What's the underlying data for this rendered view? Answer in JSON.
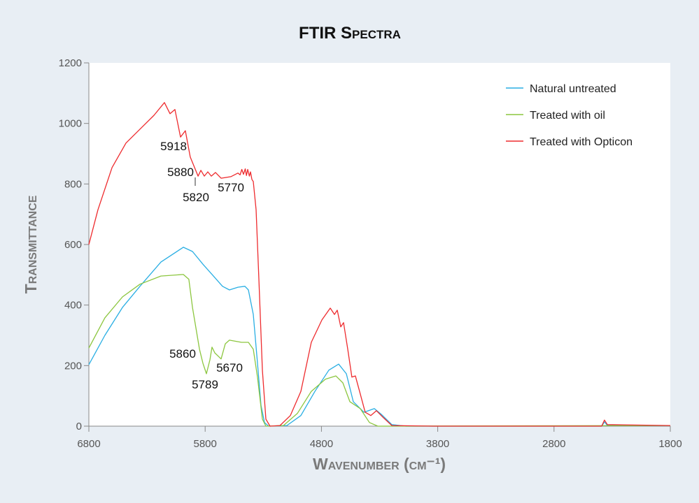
{
  "chart_data": {
    "type": "line",
    "title": "FTIR Spectra",
    "xlabel": "Wavenumber (cm⁻¹)",
    "ylabel": "Transmittance",
    "xlim": [
      6800,
      1800
    ],
    "ylim": [
      0,
      1200
    ],
    "x_reversed": true,
    "xticks": [
      6800,
      5800,
      4800,
      3800,
      2800,
      1800
    ],
    "yticks": [
      0,
      200,
      400,
      600,
      800,
      1000,
      1200
    ],
    "grid": false,
    "legend_position": "top-right",
    "series": [
      {
        "name": "Natural untreated",
        "color": "#29aee3",
        "points": [
          [
            6800,
            203
          ],
          [
            6662,
            300
          ],
          [
            6511,
            392
          ],
          [
            6361,
            462
          ],
          [
            6180,
            542
          ],
          [
            5988,
            591
          ],
          [
            5909,
            577
          ],
          [
            5819,
            535
          ],
          [
            5729,
            496
          ],
          [
            5651,
            462
          ],
          [
            5591,
            450
          ],
          [
            5518,
            459
          ],
          [
            5458,
            462
          ],
          [
            5428,
            450
          ],
          [
            5386,
            369
          ],
          [
            5350,
            208
          ],
          [
            5320,
            69
          ],
          [
            5290,
            12
          ],
          [
            5254,
            0
          ],
          [
            5097,
            2
          ],
          [
            4977,
            35
          ],
          [
            4856,
            115
          ],
          [
            4736,
            185
          ],
          [
            4652,
            205
          ],
          [
            4586,
            173
          ],
          [
            4526,
            81
          ],
          [
            4435,
            46
          ],
          [
            4345,
            58
          ],
          [
            4285,
            39
          ],
          [
            4195,
            5
          ],
          [
            4074,
            0
          ],
          [
            2390,
            0
          ],
          [
            2366,
            14
          ],
          [
            2341,
            2
          ],
          [
            1800,
            2
          ]
        ]
      },
      {
        "name": "Treated with oil",
        "color": "#8cc63f",
        "points": [
          [
            6800,
            258
          ],
          [
            6662,
            358
          ],
          [
            6511,
            427
          ],
          [
            6361,
            469
          ],
          [
            6180,
            496
          ],
          [
            5988,
            501
          ],
          [
            5940,
            485
          ],
          [
            5909,
            392
          ],
          [
            5879,
            323
          ],
          [
            5849,
            254
          ],
          [
            5819,
            208
          ],
          [
            5789,
            173
          ],
          [
            5759,
            219
          ],
          [
            5741,
            261
          ],
          [
            5717,
            242
          ],
          [
            5663,
            222
          ],
          [
            5627,
            272
          ],
          [
            5591,
            284
          ],
          [
            5488,
            277
          ],
          [
            5428,
            277
          ],
          [
            5386,
            254
          ],
          [
            5350,
            162
          ],
          [
            5308,
            23
          ],
          [
            5278,
            0
          ],
          [
            5127,
            2
          ],
          [
            5007,
            42
          ],
          [
            4887,
            115
          ],
          [
            4766,
            155
          ],
          [
            4676,
            166
          ],
          [
            4616,
            143
          ],
          [
            4556,
            81
          ],
          [
            4466,
            58
          ],
          [
            4387,
            12
          ],
          [
            4315,
            0
          ],
          [
            1800,
            2
          ]
        ]
      },
      {
        "name": "Treated with Opticon",
        "color": "#ee2b2e",
        "points": [
          [
            6800,
            600
          ],
          [
            6722,
            715
          ],
          [
            6601,
            854
          ],
          [
            6481,
            935
          ],
          [
            6361,
            981
          ],
          [
            6240,
            1027
          ],
          [
            6150,
            1069
          ],
          [
            6102,
            1032
          ],
          [
            6060,
            1046
          ],
          [
            6012,
            955
          ],
          [
            5970,
            976
          ],
          [
            5928,
            889
          ],
          [
            5891,
            854
          ],
          [
            5861,
            826
          ],
          [
            5837,
            845
          ],
          [
            5807,
            826
          ],
          [
            5777,
            840
          ],
          [
            5747,
            826
          ],
          [
            5711,
            838
          ],
          [
            5663,
            819
          ],
          [
            5579,
            824
          ],
          [
            5518,
            836
          ],
          [
            5500,
            830
          ],
          [
            5485,
            848
          ],
          [
            5470,
            832
          ],
          [
            5455,
            850
          ],
          [
            5445,
            828
          ],
          [
            5434,
            848
          ],
          [
            5420,
            826
          ],
          [
            5410,
            840
          ],
          [
            5398,
            815
          ],
          [
            5386,
            808
          ],
          [
            5362,
            715
          ],
          [
            5338,
            485
          ],
          [
            5308,
            185
          ],
          [
            5278,
            23
          ],
          [
            5242,
            0
          ],
          [
            5157,
            2
          ],
          [
            5067,
            35
          ],
          [
            4977,
            115
          ],
          [
            4887,
            277
          ],
          [
            4796,
            351
          ],
          [
            4724,
            390
          ],
          [
            4688,
            369
          ],
          [
            4664,
            383
          ],
          [
            4634,
            328
          ],
          [
            4610,
            342
          ],
          [
            4574,
            254
          ],
          [
            4538,
            162
          ],
          [
            4508,
            166
          ],
          [
            4472,
            115
          ],
          [
            4424,
            46
          ],
          [
            4375,
            35
          ],
          [
            4327,
            51
          ],
          [
            4267,
            28
          ],
          [
            4195,
            2
          ],
          [
            3834,
            0
          ],
          [
            2390,
            0
          ],
          [
            2366,
            20
          ],
          [
            2341,
            5
          ],
          [
            1800,
            2
          ]
        ]
      }
    ],
    "annotations": [
      {
        "text": "5918",
        "series": "Treated with Opticon"
      },
      {
        "text": "5880",
        "series": "Treated with Opticon"
      },
      {
        "text": "5820",
        "series": "Treated with Opticon"
      },
      {
        "text": "5770",
        "series": "Treated with Opticon"
      },
      {
        "text": "5860",
        "series": "Treated with oil"
      },
      {
        "text": "5789",
        "series": "Treated with oil"
      },
      {
        "text": "5670",
        "series": "Treated with oil"
      }
    ]
  }
}
